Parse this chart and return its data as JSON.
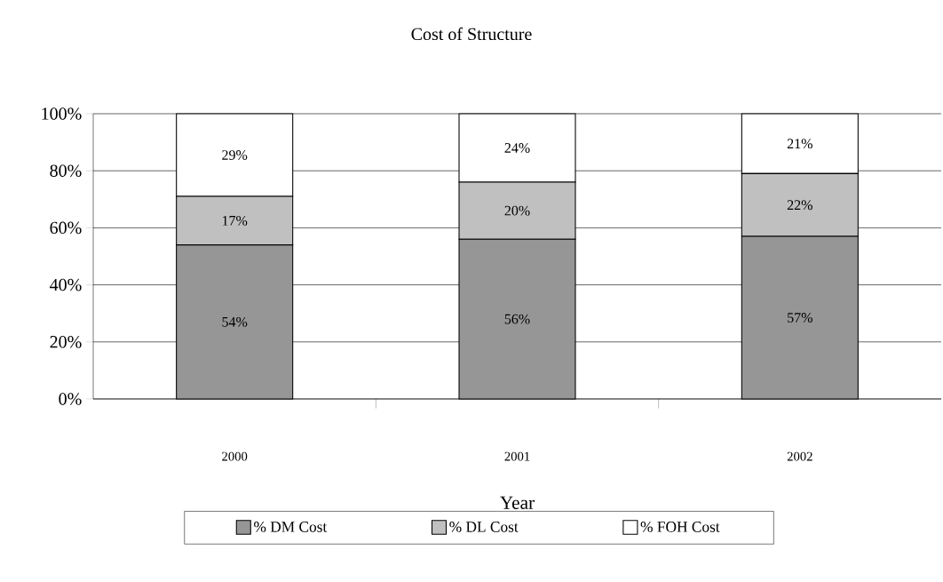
{
  "chart_data": {
    "type": "bar",
    "title": "Cost of Structure",
    "xlabel": "Year",
    "stacked": true,
    "categories": [
      "2000",
      "2001",
      "2002"
    ],
    "series": [
      {
        "name": "% DM Cost",
        "color": "#969696",
        "values": [
          54,
          56,
          57
        ],
        "value_labels": [
          "54%",
          "56%",
          "57%"
        ]
      },
      {
        "name": "% DL Cost",
        "color": "#c0c0c0",
        "values": [
          17,
          20,
          22
        ],
        "value_labels": [
          "17%",
          "20%",
          "22%"
        ]
      },
      {
        "name": "% FOH Cost",
        "color": "#ffffff",
        "values": [
          29,
          24,
          21
        ],
        "value_labels": [
          "29%",
          "24%",
          "21%"
        ]
      }
    ],
    "ylim": [
      0,
      100
    ],
    "yticks": [
      {
        "value": 0,
        "label": "0%"
      },
      {
        "value": 20,
        "label": "20%"
      },
      {
        "value": 40,
        "label": "40%"
      },
      {
        "value": 60,
        "label": "60%"
      },
      {
        "value": 80,
        "label": "80%"
      },
      {
        "value": 100,
        "label": "100%"
      }
    ],
    "grid": "y",
    "legend": "bottom"
  }
}
